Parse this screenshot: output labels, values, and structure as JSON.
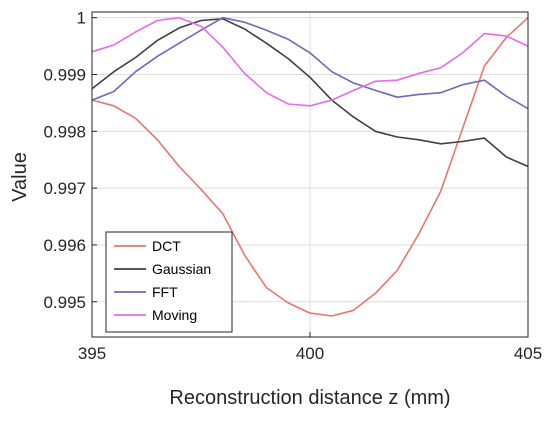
{
  "chart_data": {
    "type": "line",
    "title": "",
    "xlabel": "Reconstruction distance z (mm)",
    "ylabel": "Value",
    "xlim": [
      395,
      405
    ],
    "ylim": [
      0.99438,
      1.0001
    ],
    "xticks": [
      395,
      400,
      405
    ],
    "yticks": [
      0.995,
      0.996,
      0.997,
      0.998,
      0.999,
      1
    ],
    "ytick_labels": [
      "0.995",
      "0.996",
      "0.997",
      "0.998",
      "0.999",
      "1"
    ],
    "grid": true,
    "legend_position": "bottom-left",
    "series": [
      {
        "name": "DCT",
        "color": "#e8766e",
        "x": [
          395,
          395.5,
          396,
          396.5,
          397,
          397.5,
          398,
          398.5,
          399,
          399.5,
          400,
          400.5,
          401,
          401.5,
          402,
          402.5,
          403,
          403.5,
          404,
          404.5,
          405
        ],
        "y": [
          0.99855,
          0.99845,
          0.99823,
          0.99785,
          0.99738,
          0.99698,
          0.99655,
          0.99582,
          0.99525,
          0.99498,
          0.9948,
          0.99475,
          0.99485,
          0.99515,
          0.99555,
          0.9962,
          0.99695,
          0.99805,
          0.99915,
          0.99965,
          1.0
        ]
      },
      {
        "name": "Gaussian",
        "color": "#404040",
        "x": [
          395,
          395.5,
          396,
          396.5,
          397,
          397.5,
          398,
          398.5,
          399,
          399.5,
          400,
          400.5,
          401,
          401.5,
          402,
          402.5,
          403,
          403.5,
          404,
          404.5,
          405
        ],
        "y": [
          0.99875,
          0.99905,
          0.9993,
          0.9996,
          0.99982,
          0.99995,
          0.99998,
          0.9998,
          0.99955,
          0.99928,
          0.99895,
          0.99855,
          0.99825,
          0.998,
          0.9979,
          0.99785,
          0.99778,
          0.99782,
          0.99788,
          0.99755,
          0.99738
        ]
      },
      {
        "name": "FFT",
        "color": "#6a6ac0",
        "x": [
          395,
          395.5,
          396,
          396.5,
          397,
          397.5,
          398,
          398.5,
          399,
          399.5,
          400,
          400.5,
          401,
          401.5,
          402,
          402.5,
          403,
          403.5,
          404,
          404.5,
          405
        ],
        "y": [
          0.99855,
          0.9987,
          0.99905,
          0.99932,
          0.99955,
          0.99978,
          1.0,
          0.99992,
          0.99978,
          0.99962,
          0.99938,
          0.99905,
          0.99885,
          0.99872,
          0.9986,
          0.99865,
          0.99868,
          0.99882,
          0.9989,
          0.99862,
          0.9984
        ]
      },
      {
        "name": "Moving",
        "color": "#e86ae8",
        "x": [
          395,
          395.5,
          396,
          396.5,
          397,
          397.5,
          398,
          398.5,
          399,
          399.5,
          400,
          400.5,
          401,
          401.5,
          402,
          402.5,
          403,
          403.5,
          404,
          404.5,
          405
        ],
        "y": [
          0.9994,
          0.99952,
          0.99975,
          0.99995,
          1.0,
          0.99985,
          0.99948,
          0.99902,
          0.99868,
          0.99848,
          0.99845,
          0.99855,
          0.99872,
          0.99888,
          0.9989,
          0.99902,
          0.99912,
          0.99938,
          0.99972,
          0.99968,
          0.9995
        ]
      }
    ]
  }
}
